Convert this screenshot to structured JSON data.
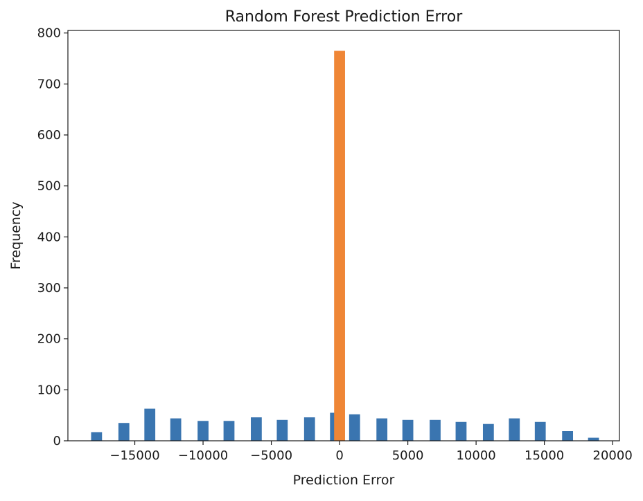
{
  "chart_data": {
    "type": "bar",
    "title": "Random Forest Prediction Error",
    "xlabel": "Prediction Error",
    "ylabel": "Frequency",
    "xlim": [
      -19900,
      20500
    ],
    "ylim": [
      0,
      805
    ],
    "xticks": [
      -15000,
      -10000,
      -5000,
      0,
      5000,
      10000,
      15000,
      20000
    ],
    "xtick_labels": [
      "−15000",
      "−10000",
      "−5000",
      "0",
      "5000",
      "10000",
      "15000",
      "20000"
    ],
    "yticks": [
      0,
      100,
      200,
      300,
      400,
      500,
      600,
      700,
      800
    ],
    "ytick_labels": [
      "0",
      "100",
      "200",
      "300",
      "400",
      "500",
      "600",
      "700",
      "800"
    ],
    "grid": false,
    "legend": "none",
    "bar_width": 800,
    "series": [
      {
        "color": "#3a75b0",
        "x": [
          -17800,
          -15800,
          -13900,
          -12000,
          -10000,
          -8100,
          -6100,
          -4200,
          -2200,
          -300,
          1100,
          3100,
          5000,
          7000,
          8900,
          10900,
          12800,
          14700,
          16700,
          18600
        ],
        "values": [
          17,
          35,
          63,
          44,
          39,
          39,
          46,
          41,
          46,
          55,
          52,
          44,
          41,
          41,
          37,
          33,
          44,
          37,
          19,
          6
        ]
      },
      {
        "color": "#ef8636",
        "x": [
          0
        ],
        "values": [
          765
        ]
      }
    ]
  }
}
